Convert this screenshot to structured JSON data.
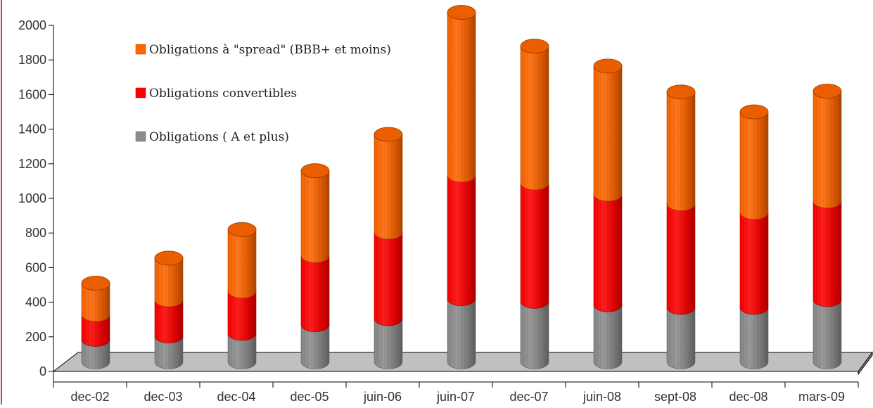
{
  "chart_data": {
    "type": "bar",
    "stacked": true,
    "style": "3d-cylinder",
    "title": "",
    "xlabel": "",
    "ylabel": "",
    "ylim": [
      0,
      2000
    ],
    "yticks": [
      0,
      200,
      400,
      600,
      800,
      1000,
      1200,
      1400,
      1600,
      1800,
      2000
    ],
    "categories": [
      "dec-02",
      "dec-03",
      "dec-04",
      "dec-05",
      "juin-06",
      "juin-07",
      "dec-07",
      "juin-08",
      "sept-08",
      "dec-08",
      "mars-09"
    ],
    "series": [
      {
        "name": "Obligations ( A et plus)",
        "color": "#8c8c8c",
        "values": [
          130,
          150,
          165,
          215,
          250,
          365,
          350,
          330,
          315,
          315,
          360
        ]
      },
      {
        "name": "Obligations convertibles",
        "color": "#ff0000",
        "values": [
          145,
          210,
          245,
          400,
          500,
          715,
          685,
          640,
          600,
          550,
          570
        ]
      },
      {
        "name": "Obligations à \"spread\" (BBB+ et moins)",
        "color": "#ff6600",
        "values": [
          180,
          240,
          355,
          490,
          565,
          940,
          790,
          740,
          645,
          580,
          635
        ]
      }
    ],
    "legend": {
      "position": "top-left, inside plot",
      "order": [
        2,
        1,
        0
      ]
    },
    "grid": false
  }
}
